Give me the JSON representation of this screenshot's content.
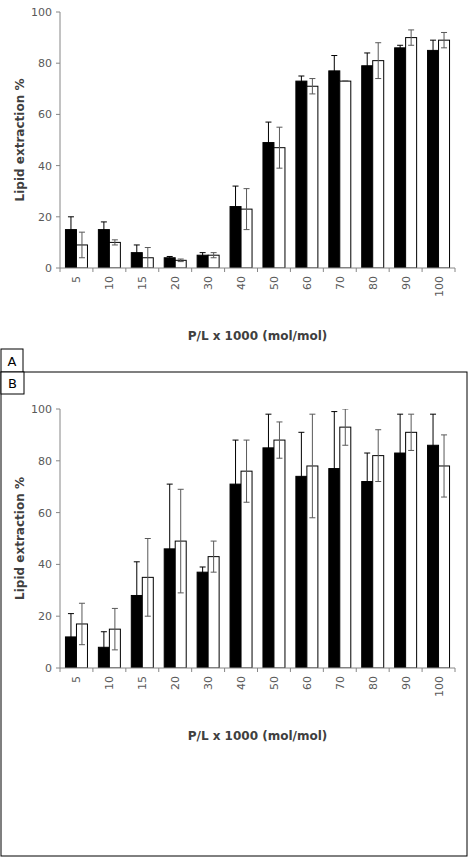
{
  "chart_data": [
    {
      "type": "bar",
      "title": "A",
      "x_label": "P/L x 1000 (mol/mol)",
      "y_label": "Lipid extraction %",
      "categories": [
        "5",
        "10",
        "15",
        "20",
        "30",
        "40",
        "50",
        "60",
        "70",
        "80",
        "90",
        "100"
      ],
      "series": [
        {
          "color": "#000000",
          "values": [
            15,
            15,
            6,
            4,
            5,
            24,
            49,
            73,
            77,
            79,
            86,
            85
          ],
          "errors": [
            5,
            3,
            3,
            0.5,
            1,
            8,
            8,
            2,
            6,
            5,
            1,
            4
          ]
        },
        {
          "color": "#ffffff",
          "values": [
            9,
            10,
            4,
            3,
            5,
            23,
            47,
            71,
            73,
            81,
            90,
            89
          ],
          "errors": [
            5,
            1,
            4,
            0.5,
            1,
            8,
            8,
            3,
            0,
            7,
            3,
            3
          ]
        }
      ],
      "ylim": [
        0,
        100
      ],
      "yticks": [
        0,
        20,
        40,
        60,
        80,
        100
      ],
      "grid": false
    },
    {
      "type": "bar",
      "title": "B",
      "x_label": "P/L x 1000 (mol/mol)",
      "y_label": "Lipid extraction %",
      "categories": [
        "5",
        "10",
        "15",
        "20",
        "30",
        "40",
        "50",
        "60",
        "70",
        "80",
        "90",
        "100"
      ],
      "series": [
        {
          "color": "#000000",
          "values": [
            12,
            8,
            28,
            46,
            37,
            71,
            85,
            74,
            77,
            72,
            83,
            86
          ],
          "errors": [
            9,
            6,
            13,
            25,
            2,
            17,
            13,
            17,
            22,
            11,
            15,
            12
          ]
        },
        {
          "color": "#ffffff",
          "values": [
            17,
            15,
            35,
            49,
            43,
            76,
            88,
            78,
            93,
            82,
            91,
            78
          ],
          "errors": [
            8,
            8,
            15,
            20,
            6,
            12,
            7,
            20,
            7,
            10,
            7,
            12
          ]
        }
      ],
      "ylim": [
        0,
        100
      ],
      "yticks": [
        0,
        20,
        40,
        60,
        80,
        100
      ],
      "grid": false
    }
  ]
}
